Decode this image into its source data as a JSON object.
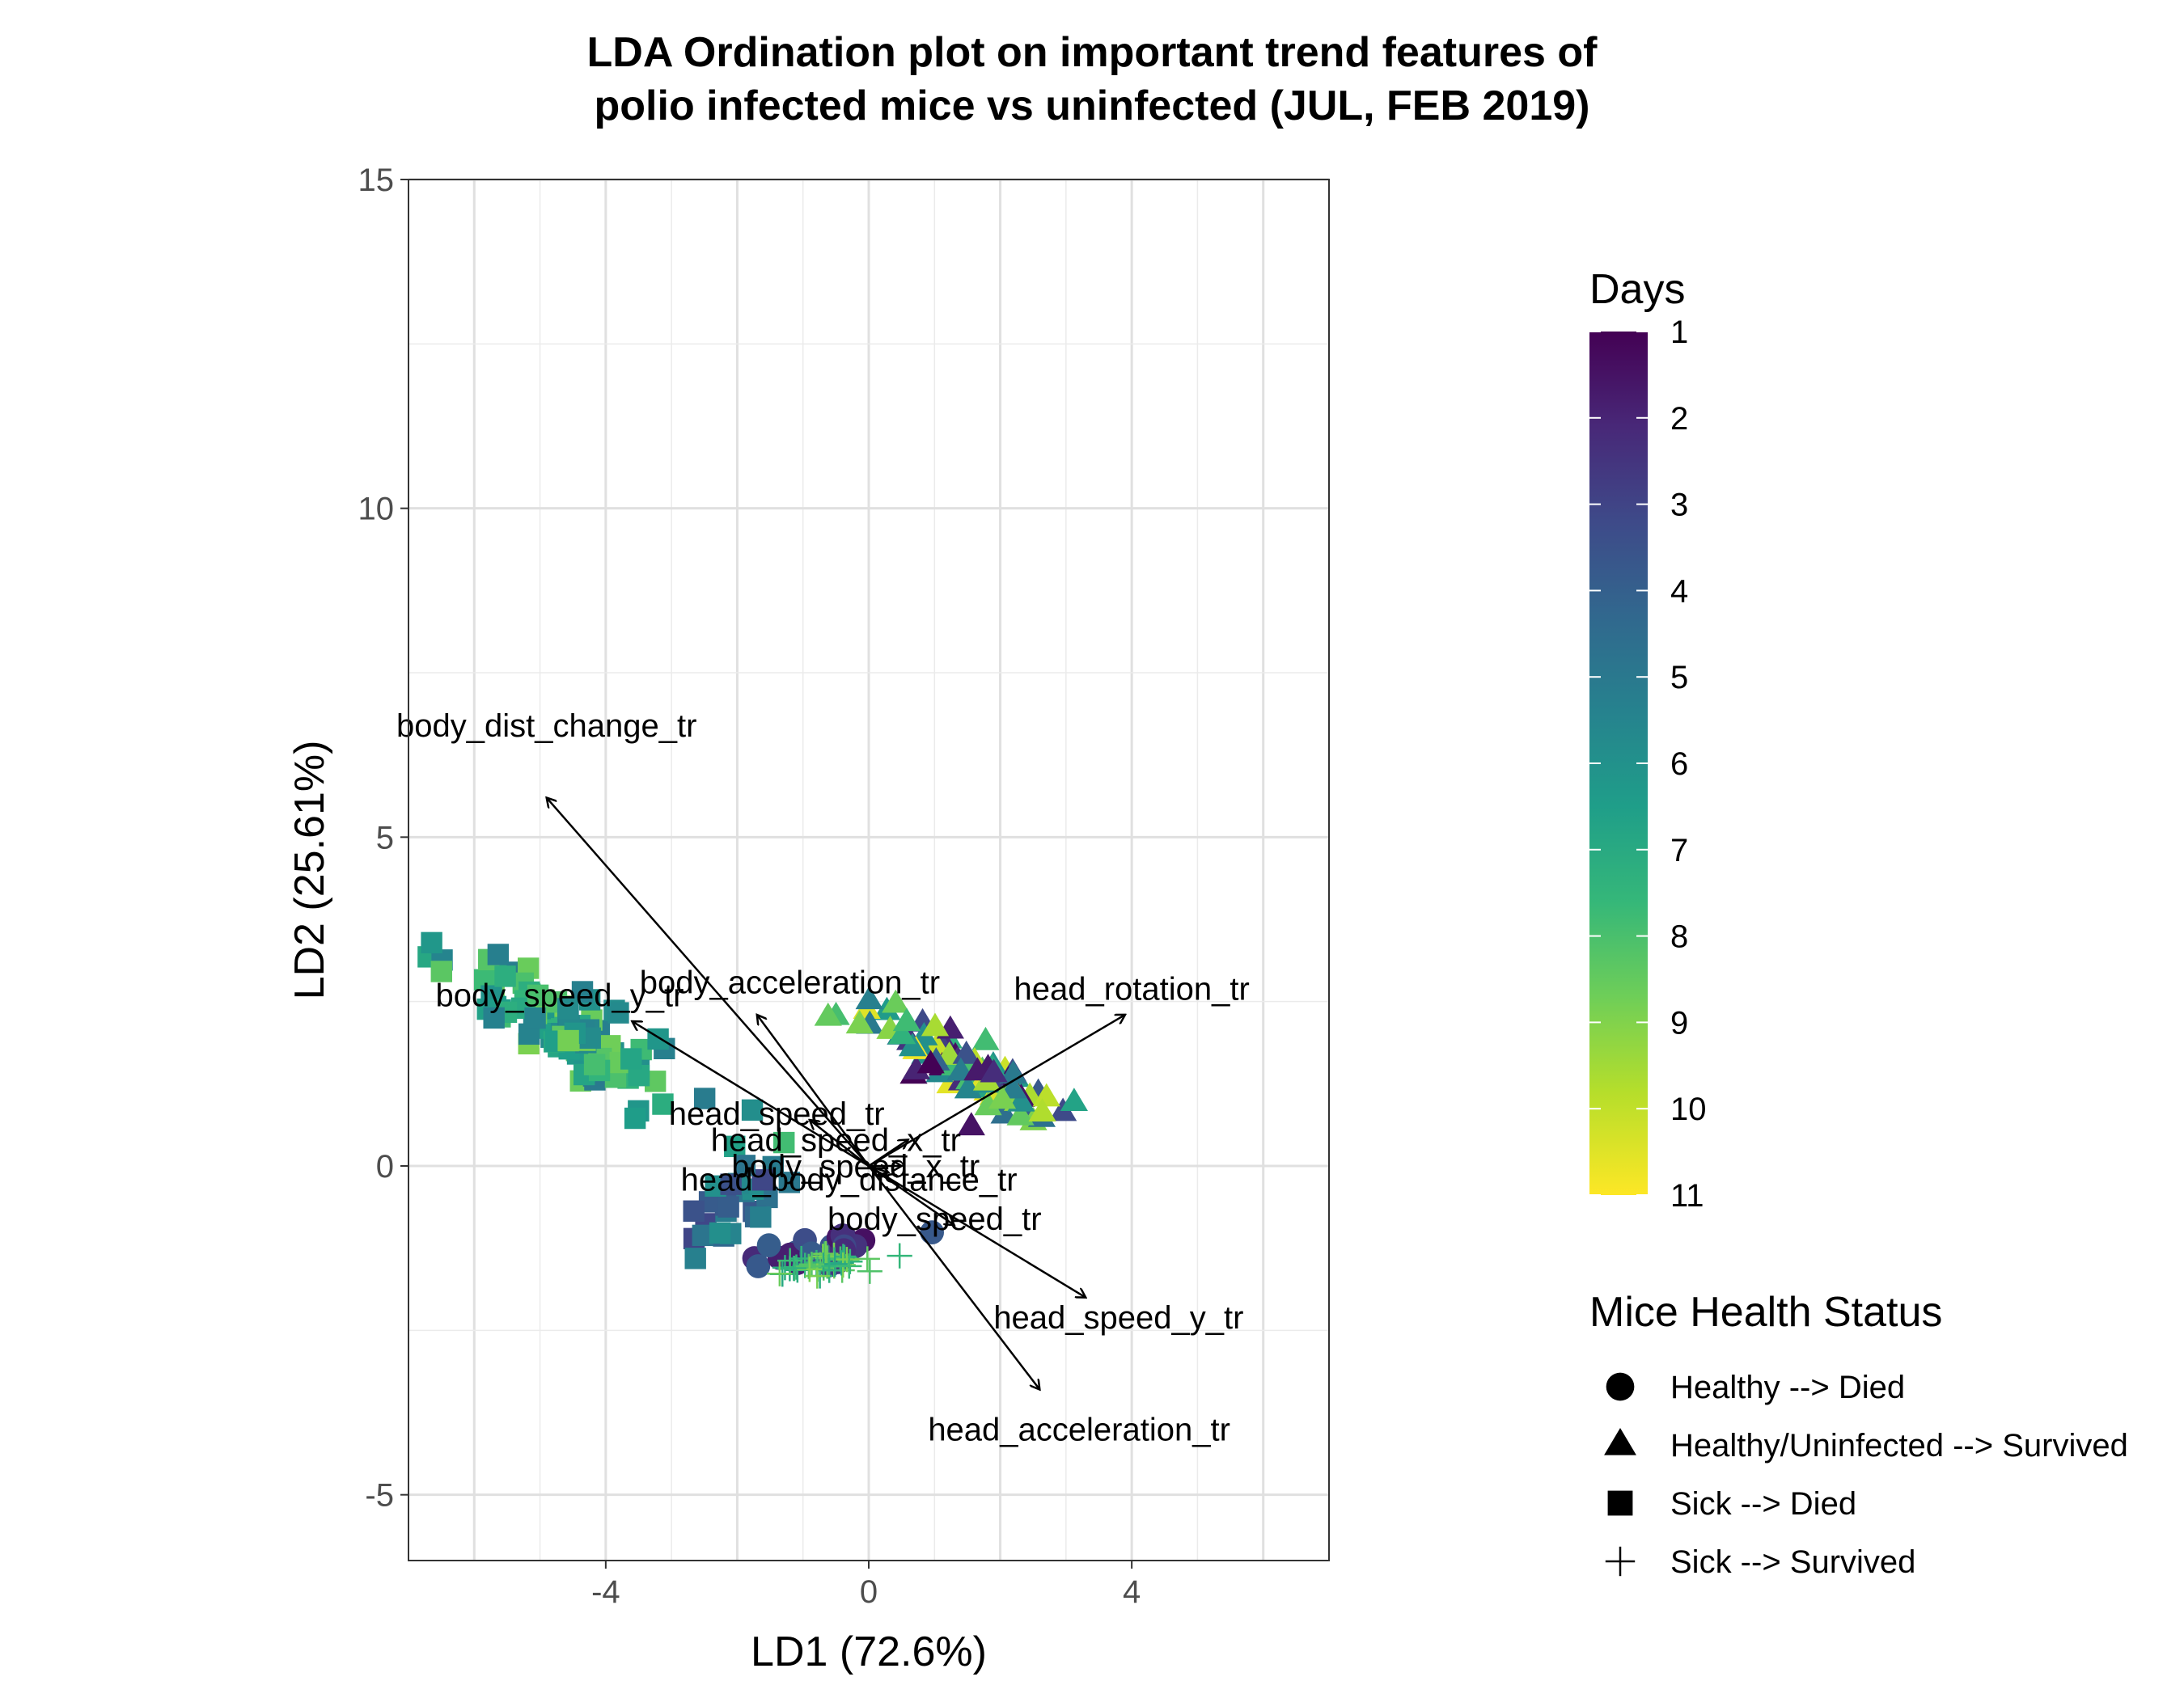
{
  "chart_data": {
    "type": "scatter",
    "title_lines": [
      "LDA Ordination plot on important trend features of",
      "polio infected mice vs uninfected (JUL, FEB 2019)"
    ],
    "xlabel": "LD1 (72.6%)",
    "ylabel": "LD2 (25.61%)",
    "xlim": [
      -7,
      7
    ],
    "ylim": [
      -6,
      15
    ],
    "x_ticks": [
      -4,
      0,
      4
    ],
    "y_ticks": [
      -5,
      0,
      5,
      10,
      15
    ],
    "grid": true,
    "color_legend": {
      "title": "Days",
      "min": 1,
      "max": 11,
      "ticks": [
        1,
        2,
        3,
        4,
        5,
        6,
        7,
        8,
        9,
        10,
        11
      ],
      "palette": [
        "#440154",
        "#482878",
        "#3e4a89",
        "#31688e",
        "#26828e",
        "#1f9e89",
        "#35b779",
        "#6ece58",
        "#b5de2b",
        "#fde725"
      ]
    },
    "shape_legend": {
      "title": "Mice Health Status",
      "items": [
        {
          "shape": "circle",
          "label": "Healthy --> Died"
        },
        {
          "shape": "triangle",
          "label": "Healthy/Uninfected --> Survived"
        },
        {
          "shape": "square",
          "label": "Sick --> Died"
        },
        {
          "shape": "plus",
          "label": "Sick --> Survived"
        }
      ]
    },
    "loadings": [
      {
        "label": "body_dist_change_tr",
        "x": -4.9,
        "y": 5.6,
        "label_x": -4.9,
        "label_y": 6.7
      },
      {
        "label": "body_acceleration_tr",
        "x": -1.7,
        "y": 2.3,
        "label_x": -1.2,
        "label_y": 2.8
      },
      {
        "label": "body_speed_y_tr",
        "x": -3.6,
        "y": 2.2,
        "label_x": -4.7,
        "label_y": 2.6
      },
      {
        "label": "head_rotation_tr",
        "x": 3.9,
        "y": 2.3,
        "label_x": 4.0,
        "label_y": 2.7
      },
      {
        "label": "head_speed_tr",
        "x": -0.9,
        "y": 0.7,
        "label_x": -1.4,
        "label_y": 0.8
      },
      {
        "label": "head_speed_x_tr",
        "x": 0.6,
        "y": 0.4,
        "label_x": -0.5,
        "label_y": 0.4
      },
      {
        "label": "body_speed_x_tr",
        "x": 0.5,
        "y": 0.0,
        "label_x": -0.2,
        "label_y": 0.0
      },
      {
        "label": "head_body_distance_tr",
        "x": 0.3,
        "y": -0.1,
        "label_x": -0.3,
        "label_y": -0.2
      },
      {
        "label": "body_speed_tr",
        "x": 1.3,
        "y": -0.9,
        "label_x": 1.0,
        "label_y": -0.8
      },
      {
        "label": "head_speed_y_tr",
        "x": 3.3,
        "y": -2.0,
        "label_x": 3.8,
        "label_y": -2.3
      },
      {
        "label": "head_acceleration_tr",
        "x": 2.6,
        "y": -3.4,
        "label_x": 3.2,
        "label_y": -4.0
      }
    ],
    "clusters": [
      {
        "group": "Sick --> Died",
        "shape": "square",
        "center": [
          -4.5,
          2.0
        ],
        "spread": [
          1.5,
          0.9
        ],
        "slope": -0.55,
        "n": 110,
        "day_range": [
          5,
          9
        ]
      },
      {
        "group": "Sick --> Died",
        "shape": "square",
        "center": [
          -2.0,
          -0.6
        ],
        "spread": [
          1.0,
          0.7
        ],
        "slope": 0.4,
        "n": 25,
        "day_range": [
          3,
          6
        ]
      },
      {
        "group": "Healthy/Uninfected --> Survived",
        "shape": "triangle",
        "center": [
          1.6,
          1.4
        ],
        "spread": [
          1.2,
          0.55
        ],
        "slope": -0.55,
        "n": 110,
        "day_range": [
          1,
          11
        ]
      },
      {
        "group": "Healthy/Uninfected --> Survived",
        "shape": "triangle",
        "center": [
          -0.6,
          2.3
        ],
        "spread": [
          0.3,
          0.1
        ],
        "slope": 0,
        "n": 2,
        "day_range": [
          8,
          9
        ]
      },
      {
        "group": "Healthy --> Died",
        "shape": "circle",
        "center": [
          -0.6,
          -1.3
        ],
        "spread": [
          0.9,
          0.35
        ],
        "slope": 0.2,
        "n": 30,
        "day_range": [
          1,
          4
        ]
      },
      {
        "group": "Sick --> Survived",
        "shape": "plus",
        "center": [
          -0.7,
          -1.5
        ],
        "spread": [
          0.8,
          0.25
        ],
        "slope": 0.15,
        "n": 45,
        "day_range": [
          7,
          9
        ]
      }
    ]
  }
}
